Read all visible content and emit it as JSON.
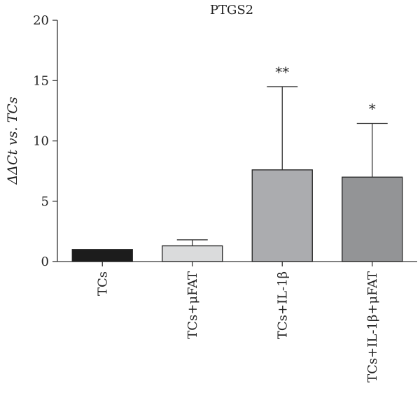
{
  "chart_data": {
    "type": "bar",
    "title": "PTGS2",
    "ylabel": "ΔΔCt vs. TCs",
    "xlabel": "",
    "ylim": [
      0,
      20
    ],
    "yticks": [
      0,
      5,
      10,
      15,
      20
    ],
    "categories": [
      "TCs",
      "TCs+μFAT",
      "TCs+IL-1β",
      "TCs+IL-1β+μFAT"
    ],
    "values": [
      1.0,
      1.3,
      7.6,
      7.0
    ],
    "errors": [
      0,
      0.5,
      6.9,
      4.45
    ],
    "annotations": [
      "",
      "",
      "**",
      "*"
    ],
    "colors": [
      "#1c1c1c",
      "#dadbdc",
      "#abacaf",
      "#939496"
    ],
    "grid": false,
    "legend": "none"
  }
}
